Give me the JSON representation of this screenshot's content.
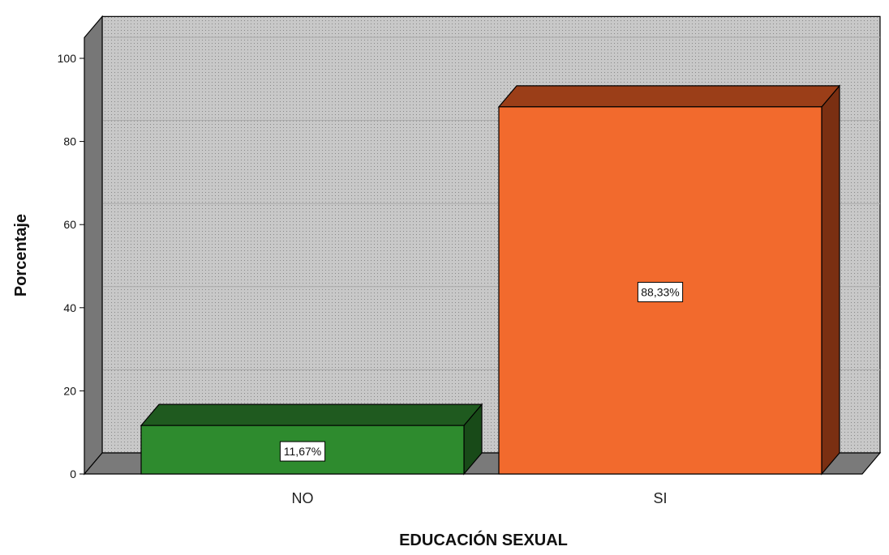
{
  "chart_data": {
    "type": "bar",
    "title": "",
    "xlabel": "EDUCACIÓN SEXUAL",
    "ylabel": "Porcentaje",
    "categories": [
      "NO",
      "SI"
    ],
    "values": [
      11.67,
      88.33
    ],
    "data_labels": [
      "11,67%",
      "88,33%"
    ],
    "ylim": [
      0,
      105
    ],
    "yticks": [
      0,
      20,
      40,
      60,
      80,
      100
    ],
    "ytick_labels": [
      "0",
      "20",
      "40",
      "60",
      "80",
      "100"
    ],
    "bar_colors": [
      "#2e8b2e",
      "#f26a2d"
    ],
    "bar_top_colors": [
      "#1f5a1f",
      "#9b3e18"
    ],
    "bar_side_colors": [
      "#184a18",
      "#7a2f12"
    ],
    "wall_color": "#c6c6c6",
    "floor_color": "#7a7a7a",
    "grid": true,
    "three_d": true,
    "legend": "none"
  }
}
